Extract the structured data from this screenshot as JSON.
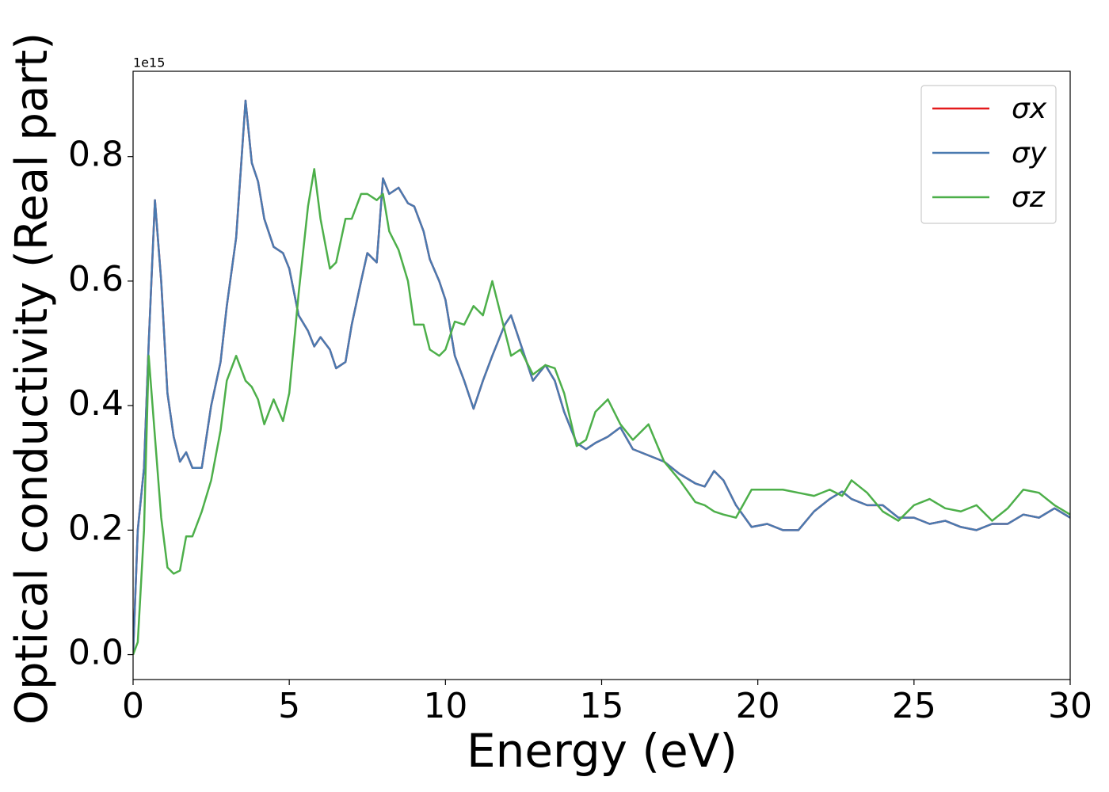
{
  "chart_data": {
    "type": "line",
    "xlabel": "Energy (eV)",
    "ylabel": "Optical conductivity (Real part)",
    "y_offset_label": "1e15",
    "x": [
      0,
      0.15,
      0.35,
      0.5,
      0.7,
      0.9,
      1.1,
      1.3,
      1.5,
      1.7,
      1.9,
      2.2,
      2.5,
      2.8,
      3.0,
      3.3,
      3.6,
      3.8,
      4.0,
      4.2,
      4.5,
      4.8,
      5.0,
      5.3,
      5.6,
      5.8,
      6.0,
      6.3,
      6.5,
      6.8,
      7.0,
      7.3,
      7.5,
      7.8,
      8.0,
      8.2,
      8.5,
      8.8,
      9.0,
      9.3,
      9.5,
      9.8,
      10.0,
      10.3,
      10.6,
      10.9,
      11.2,
      11.5,
      11.9,
      12.1,
      12.4,
      12.8,
      13.2,
      13.5,
      13.8,
      14.2,
      14.5,
      14.8,
      15.2,
      15.6,
      16.0,
      16.5,
      17.0,
      17.5,
      18.0,
      18.3,
      18.6,
      18.9,
      19.3,
      19.8,
      20.3,
      20.8,
      21.3,
      21.8,
      22.3,
      22.7,
      23.0,
      23.5,
      24.0,
      24.5,
      25.0,
      25.5,
      26.0,
      26.5,
      27.0,
      27.5,
      28.0,
      28.5,
      29.0,
      29.5,
      30.0
    ],
    "series": [
      {
        "name": "σx",
        "color": "#e41a1c",
        "values": [
          0,
          0.2,
          0.3,
          0.5,
          0.73,
          0.6,
          0.42,
          0.35,
          0.31,
          0.325,
          0.3,
          0.3,
          0.4,
          0.47,
          0.56,
          0.67,
          0.89,
          0.79,
          0.76,
          0.7,
          0.655,
          0.645,
          0.62,
          0.545,
          0.52,
          0.495,
          0.51,
          0.49,
          0.46,
          0.47,
          0.53,
          0.6,
          0.645,
          0.63,
          0.765,
          0.74,
          0.75,
          0.725,
          0.72,
          0.68,
          0.635,
          0.6,
          0.57,
          0.48,
          0.44,
          0.395,
          0.44,
          0.48,
          0.53,
          0.545,
          0.5,
          0.44,
          0.465,
          0.44,
          0.39,
          0.34,
          0.33,
          0.34,
          0.35,
          0.365,
          0.33,
          0.32,
          0.31,
          0.29,
          0.275,
          0.27,
          0.295,
          0.28,
          0.24,
          0.205,
          0.21,
          0.2,
          0.2,
          0.23,
          0.25,
          0.262,
          0.25,
          0.24,
          0.24,
          0.22,
          0.22,
          0.21,
          0.215,
          0.205,
          0.2,
          0.21,
          0.21,
          0.225,
          0.22,
          0.235,
          0.22
        ]
      },
      {
        "name": "σy",
        "color": "#4a7ab0",
        "values": [
          0,
          0.2,
          0.3,
          0.5,
          0.73,
          0.6,
          0.42,
          0.35,
          0.31,
          0.325,
          0.3,
          0.3,
          0.4,
          0.47,
          0.56,
          0.67,
          0.89,
          0.79,
          0.76,
          0.7,
          0.655,
          0.645,
          0.62,
          0.545,
          0.52,
          0.495,
          0.51,
          0.49,
          0.46,
          0.47,
          0.53,
          0.6,
          0.645,
          0.63,
          0.765,
          0.74,
          0.75,
          0.725,
          0.72,
          0.68,
          0.635,
          0.6,
          0.57,
          0.48,
          0.44,
          0.395,
          0.44,
          0.48,
          0.53,
          0.545,
          0.5,
          0.44,
          0.465,
          0.44,
          0.39,
          0.34,
          0.33,
          0.34,
          0.35,
          0.365,
          0.33,
          0.32,
          0.31,
          0.29,
          0.275,
          0.27,
          0.295,
          0.28,
          0.24,
          0.205,
          0.21,
          0.2,
          0.2,
          0.23,
          0.25,
          0.262,
          0.25,
          0.24,
          0.24,
          0.22,
          0.22,
          0.21,
          0.215,
          0.205,
          0.2,
          0.21,
          0.21,
          0.225,
          0.22,
          0.235,
          0.22
        ]
      },
      {
        "name": "σz",
        "color": "#4daf4a",
        "values": [
          0,
          0.02,
          0.2,
          0.48,
          0.35,
          0.22,
          0.14,
          0.13,
          0.135,
          0.19,
          0.19,
          0.23,
          0.28,
          0.36,
          0.44,
          0.48,
          0.44,
          0.43,
          0.41,
          0.37,
          0.41,
          0.375,
          0.42,
          0.58,
          0.72,
          0.78,
          0.7,
          0.62,
          0.63,
          0.7,
          0.7,
          0.74,
          0.74,
          0.73,
          0.74,
          0.68,
          0.65,
          0.6,
          0.53,
          0.53,
          0.49,
          0.48,
          0.49,
          0.535,
          0.53,
          0.56,
          0.545,
          0.6,
          0.52,
          0.48,
          0.49,
          0.45,
          0.465,
          0.46,
          0.42,
          0.335,
          0.345,
          0.39,
          0.41,
          0.37,
          0.345,
          0.37,
          0.31,
          0.28,
          0.245,
          0.24,
          0.23,
          0.225,
          0.22,
          0.265,
          0.265,
          0.265,
          0.26,
          0.255,
          0.265,
          0.255,
          0.28,
          0.26,
          0.23,
          0.215,
          0.24,
          0.25,
          0.235,
          0.23,
          0.24,
          0.215,
          0.235,
          0.265,
          0.26,
          0.24,
          0.225
        ]
      }
    ],
    "xlim": [
      0,
      30
    ],
    "xticks": [
      0,
      5,
      10,
      15,
      20,
      25,
      30
    ],
    "ylim": [
      -0.04,
      0.937
    ],
    "yticks": [
      {
        "value": 0,
        "label": "0.0"
      },
      0.2,
      0.4,
      0.6,
      0.8
    ],
    "grid": false,
    "legend": "upper right"
  }
}
